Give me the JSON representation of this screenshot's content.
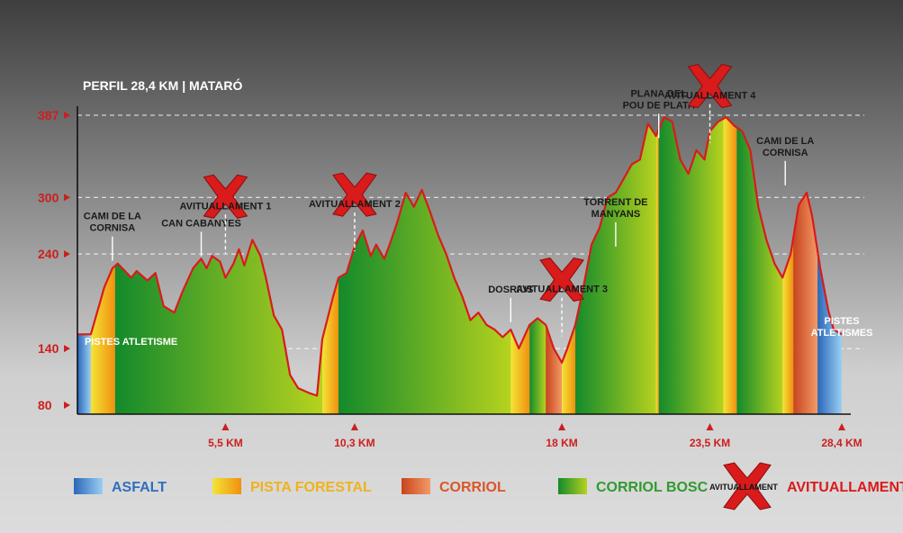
{
  "chart_data": {
    "type": "area",
    "title": "PERFIL 28,4 KM | MATARÓ",
    "xlabel": "",
    "ylabel": "",
    "xlim": [
      0,
      28.4
    ],
    "ylim": [
      80,
      387
    ],
    "y_ticks": [
      80,
      140,
      240,
      300,
      387
    ],
    "y_tick_labels": [
      "80",
      "140",
      "240",
      "300",
      "387"
    ],
    "x_ticks": [
      5.5,
      10.3,
      18,
      23.5,
      28.4
    ],
    "x_tick_labels": [
      "5,5 KM",
      "10,3 KM",
      "18 KM",
      "23,5 KM",
      "28,4 KM"
    ],
    "grid": "dashed horizontal at 140, 240, 300, 387",
    "profile": {
      "x": [
        0,
        0.5,
        1.0,
        1.3,
        1.5,
        2.0,
        2.2,
        2.6,
        2.9,
        3.2,
        3.6,
        3.9,
        4.3,
        4.6,
        4.8,
        5.0,
        5.3,
        5.5,
        5.8,
        6.0,
        6.2,
        6.5,
        6.8,
        7.0,
        7.3,
        7.6,
        7.9,
        8.2,
        8.6,
        8.9,
        9.1,
        9.5,
        9.7,
        10.0,
        10.3,
        10.6,
        10.9,
        11.1,
        11.4,
        11.6,
        11.9,
        12.2,
        12.5,
        12.8,
        13.1,
        13.4,
        13.7,
        14.0,
        14.3,
        14.6,
        14.9,
        15.2,
        15.5,
        15.8,
        16.1,
        16.4,
        16.8,
        17.1,
        17.4,
        17.7,
        18.0,
        18.2,
        18.5,
        18.8,
        19.1,
        19.4,
        19.7,
        20.0,
        20.3,
        20.6,
        20.9,
        21.2,
        21.5,
        21.8,
        22.1,
        22.4,
        22.7,
        23.0,
        23.3,
        23.5,
        23.8,
        24.1,
        24.4,
        24.7,
        25.0,
        25.3,
        25.6,
        25.9,
        26.2,
        26.5,
        26.8,
        27.1,
        27.3,
        27.6,
        27.9,
        28.1,
        28.4
      ],
      "elevation": [
        155,
        155,
        205,
        225,
        230,
        215,
        222,
        212,
        220,
        185,
        178,
        200,
        225,
        235,
        225,
        238,
        232,
        215,
        230,
        245,
        228,
        255,
        238,
        215,
        175,
        160,
        112,
        98,
        93,
        90,
        150,
        195,
        215,
        220,
        248,
        265,
        238,
        250,
        235,
        250,
        275,
        305,
        290,
        308,
        285,
        260,
        240,
        215,
        195,
        170,
        178,
        165,
        160,
        152,
        160,
        140,
        165,
        172,
        165,
        140,
        125,
        140,
        165,
        205,
        250,
        268,
        300,
        305,
        320,
        335,
        340,
        378,
        365,
        385,
        380,
        340,
        325,
        350,
        340,
        370,
        380,
        385,
        376,
        370,
        350,
        290,
        255,
        230,
        215,
        240,
        292,
        305,
        280,
        225,
        180,
        160,
        155
      ]
    },
    "surfaces": [
      {
        "type": "asfalt",
        "from": 0,
        "to": 0.5
      },
      {
        "type": "pista_forestal",
        "from": 0.5,
        "to": 1.4
      },
      {
        "type": "corriol_bosc",
        "from": 1.4,
        "to": 9.1
      },
      {
        "type": "pista_forestal",
        "from": 9.1,
        "to": 9.7
      },
      {
        "type": "corriol_bosc",
        "from": 9.7,
        "to": 16.1
      },
      {
        "type": "pista_forestal",
        "from": 16.1,
        "to": 16.8
      },
      {
        "type": "corriol_bosc",
        "from": 16.8,
        "to": 17.4
      },
      {
        "type": "corriol",
        "from": 17.4,
        "to": 18.0
      },
      {
        "type": "pista_forestal",
        "from": 18.0,
        "to": 18.5
      },
      {
        "type": "corriol_bosc",
        "from": 18.5,
        "to": 21.5
      },
      {
        "type": "pista_forestal",
        "from": 21.5,
        "to": 21.6
      },
      {
        "type": "corriol_bosc",
        "from": 21.6,
        "to": 24.0
      },
      {
        "type": "pista_forestal",
        "from": 24.0,
        "to": 24.5
      },
      {
        "type": "corriol_bosc",
        "from": 24.5,
        "to": 26.2
      },
      {
        "type": "pista_forestal",
        "from": 26.2,
        "to": 26.6
      },
      {
        "type": "corriol",
        "from": 26.6,
        "to": 27.5
      },
      {
        "type": "asfalt",
        "from": 27.5,
        "to": 28.4
      }
    ],
    "annotations": [
      {
        "x": 0.2,
        "y": 140,
        "lines": [
          "PISTES ATLETISME"
        ],
        "style": "white-inside"
      },
      {
        "x": 1.3,
        "y": 230,
        "lines": [
          "CAMI DE LA",
          "CORNISA"
        ]
      },
      {
        "x": 4.6,
        "y": 235,
        "lines": [
          "CAN CABANYES"
        ]
      },
      {
        "x": 5.5,
        "y": 238,
        "lines": [
          "AVITUALLAMENT 1"
        ],
        "marker": true
      },
      {
        "x": 10.3,
        "y": 240,
        "lines": [
          "AVITUALLAMENT 2"
        ],
        "marker": true
      },
      {
        "x": 16.1,
        "y": 165,
        "lines": [
          "DOSRIUS"
        ]
      },
      {
        "x": 18.0,
        "y": 150,
        "lines": [
          "AVITUALLAMENT 3"
        ],
        "marker": true
      },
      {
        "x": 20.0,
        "y": 245,
        "lines": [
          "TORRENT DE",
          "MANYANS"
        ]
      },
      {
        "x": 21.6,
        "y": 360,
        "lines": [
          "PLANA DEL",
          "POU DE PLATA"
        ]
      },
      {
        "x": 23.5,
        "y": 355,
        "lines": [
          "AVITUALLAMENT 4"
        ],
        "marker": true
      },
      {
        "x": 26.3,
        "y": 310,
        "lines": [
          "CAMI DE LA",
          "CORNISA"
        ]
      },
      {
        "x": 28.0,
        "y": 160,
        "lines": [
          "PISTES",
          "ATLETISMES"
        ],
        "style": "white-right"
      }
    ],
    "legend": {
      "placement": "bottom",
      "items": [
        {
          "key": "asfalt",
          "label": "ASFALT",
          "color": "#2f6fbf"
        },
        {
          "key": "pista_forestal",
          "label": "PISTA FORESTAL",
          "color": "#f0b21c"
        },
        {
          "key": "corriol",
          "label": "CORRIOL",
          "color": "#d9562a"
        },
        {
          "key": "corriol_bosc",
          "label": "CORRIOL BOSC",
          "color": "#2f9a2f"
        },
        {
          "key": "avituallament",
          "label": "AVITUALLAMENT",
          "marker_text": "AVITUALLAMENT",
          "color": "#d91b1b"
        }
      ]
    },
    "colors": {
      "profile_line": "#d91b1b",
      "asfalt": [
        "#2a66b8",
        "#9ad0f3"
      ],
      "pista_forestal": [
        "#f4e436",
        "#f0900f"
      ],
      "corriol": [
        "#c8441d",
        "#f29a66"
      ],
      "corriol_bosc": [
        "#138a2b",
        "#b6d21e"
      ]
    }
  }
}
